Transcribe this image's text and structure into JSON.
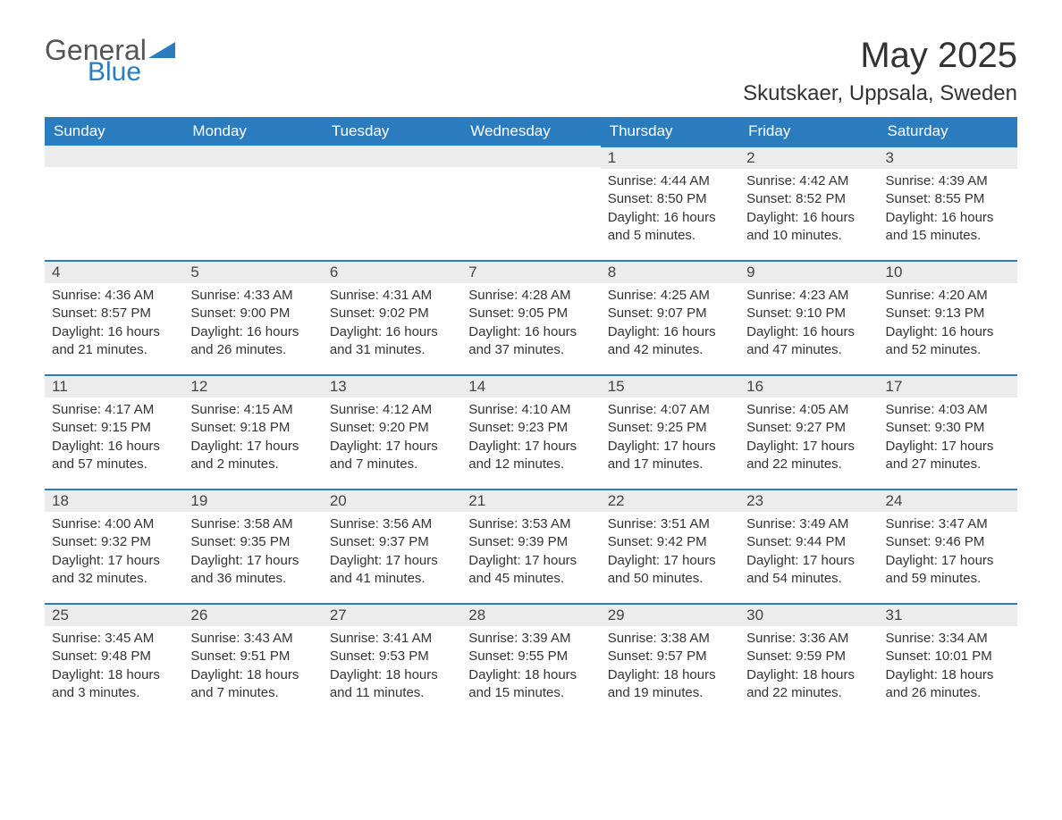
{
  "logo": {
    "text1": "General",
    "text2": "Blue",
    "triangle_color": "#2b7bbf"
  },
  "title": "May 2025",
  "location": "Skutskaer, Uppsala, Sweden",
  "colors": {
    "header_bg": "#2b7bbf",
    "header_text": "#ffffff",
    "daybar_bg": "#ececec",
    "daybar_border": "#2b7bbf",
    "body_text": "#333333",
    "page_bg": "#ffffff"
  },
  "font": {
    "family": "Arial",
    "title_size": 40,
    "location_size": 24,
    "header_size": 17,
    "body_size": 15
  },
  "weekdays": [
    "Sunday",
    "Monday",
    "Tuesday",
    "Wednesday",
    "Thursday",
    "Friday",
    "Saturday"
  ],
  "first_weekday_index": 4,
  "days": [
    {
      "n": "1",
      "sunrise": "4:44 AM",
      "sunset": "8:50 PM",
      "daylight": "16 hours and 5 minutes."
    },
    {
      "n": "2",
      "sunrise": "4:42 AM",
      "sunset": "8:52 PM",
      "daylight": "16 hours and 10 minutes."
    },
    {
      "n": "3",
      "sunrise": "4:39 AM",
      "sunset": "8:55 PM",
      "daylight": "16 hours and 15 minutes."
    },
    {
      "n": "4",
      "sunrise": "4:36 AM",
      "sunset": "8:57 PM",
      "daylight": "16 hours and 21 minutes."
    },
    {
      "n": "5",
      "sunrise": "4:33 AM",
      "sunset": "9:00 PM",
      "daylight": "16 hours and 26 minutes."
    },
    {
      "n": "6",
      "sunrise": "4:31 AM",
      "sunset": "9:02 PM",
      "daylight": "16 hours and 31 minutes."
    },
    {
      "n": "7",
      "sunrise": "4:28 AM",
      "sunset": "9:05 PM",
      "daylight": "16 hours and 37 minutes."
    },
    {
      "n": "8",
      "sunrise": "4:25 AM",
      "sunset": "9:07 PM",
      "daylight": "16 hours and 42 minutes."
    },
    {
      "n": "9",
      "sunrise": "4:23 AM",
      "sunset": "9:10 PM",
      "daylight": "16 hours and 47 minutes."
    },
    {
      "n": "10",
      "sunrise": "4:20 AM",
      "sunset": "9:13 PM",
      "daylight": "16 hours and 52 minutes."
    },
    {
      "n": "11",
      "sunrise": "4:17 AM",
      "sunset": "9:15 PM",
      "daylight": "16 hours and 57 minutes."
    },
    {
      "n": "12",
      "sunrise": "4:15 AM",
      "sunset": "9:18 PM",
      "daylight": "17 hours and 2 minutes."
    },
    {
      "n": "13",
      "sunrise": "4:12 AM",
      "sunset": "9:20 PM",
      "daylight": "17 hours and 7 minutes."
    },
    {
      "n": "14",
      "sunrise": "4:10 AM",
      "sunset": "9:23 PM",
      "daylight": "17 hours and 12 minutes."
    },
    {
      "n": "15",
      "sunrise": "4:07 AM",
      "sunset": "9:25 PM",
      "daylight": "17 hours and 17 minutes."
    },
    {
      "n": "16",
      "sunrise": "4:05 AM",
      "sunset": "9:27 PM",
      "daylight": "17 hours and 22 minutes."
    },
    {
      "n": "17",
      "sunrise": "4:03 AM",
      "sunset": "9:30 PM",
      "daylight": "17 hours and 27 minutes."
    },
    {
      "n": "18",
      "sunrise": "4:00 AM",
      "sunset": "9:32 PM",
      "daylight": "17 hours and 32 minutes."
    },
    {
      "n": "19",
      "sunrise": "3:58 AM",
      "sunset": "9:35 PM",
      "daylight": "17 hours and 36 minutes."
    },
    {
      "n": "20",
      "sunrise": "3:56 AM",
      "sunset": "9:37 PM",
      "daylight": "17 hours and 41 minutes."
    },
    {
      "n": "21",
      "sunrise": "3:53 AM",
      "sunset": "9:39 PM",
      "daylight": "17 hours and 45 minutes."
    },
    {
      "n": "22",
      "sunrise": "3:51 AM",
      "sunset": "9:42 PM",
      "daylight": "17 hours and 50 minutes."
    },
    {
      "n": "23",
      "sunrise": "3:49 AM",
      "sunset": "9:44 PM",
      "daylight": "17 hours and 54 minutes."
    },
    {
      "n": "24",
      "sunrise": "3:47 AM",
      "sunset": "9:46 PM",
      "daylight": "17 hours and 59 minutes."
    },
    {
      "n": "25",
      "sunrise": "3:45 AM",
      "sunset": "9:48 PM",
      "daylight": "18 hours and 3 minutes."
    },
    {
      "n": "26",
      "sunrise": "3:43 AM",
      "sunset": "9:51 PM",
      "daylight": "18 hours and 7 minutes."
    },
    {
      "n": "27",
      "sunrise": "3:41 AM",
      "sunset": "9:53 PM",
      "daylight": "18 hours and 11 minutes."
    },
    {
      "n": "28",
      "sunrise": "3:39 AM",
      "sunset": "9:55 PM",
      "daylight": "18 hours and 15 minutes."
    },
    {
      "n": "29",
      "sunrise": "3:38 AM",
      "sunset": "9:57 PM",
      "daylight": "18 hours and 19 minutes."
    },
    {
      "n": "30",
      "sunrise": "3:36 AM",
      "sunset": "9:59 PM",
      "daylight": "18 hours and 22 minutes."
    },
    {
      "n": "31",
      "sunrise": "3:34 AM",
      "sunset": "10:01 PM",
      "daylight": "18 hours and 26 minutes."
    }
  ],
  "labels": {
    "sunrise": "Sunrise: ",
    "sunset": "Sunset: ",
    "daylight": "Daylight: "
  }
}
